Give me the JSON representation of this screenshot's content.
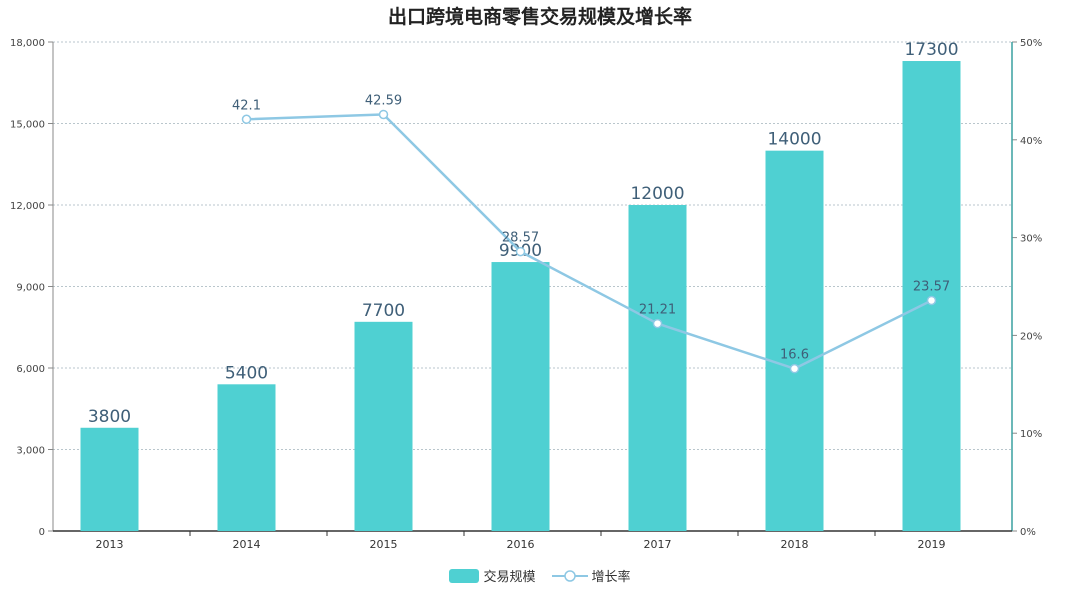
{
  "chart_data": {
    "type": "bar",
    "title": "出口跨境电商零售交易规模及增长率",
    "categories": [
      "2013",
      "2014",
      "2015",
      "2016",
      "2017",
      "2018",
      "2019"
    ],
    "series": [
      {
        "name": "交易规模",
        "type": "bar",
        "axis": "left",
        "values": [
          3800,
          5400,
          7700,
          9900,
          12000,
          14000,
          17300
        ]
      },
      {
        "name": "增长率",
        "type": "line",
        "axis": "right",
        "values": [
          null,
          42.1,
          42.59,
          28.57,
          21.21,
          16.6,
          23.57
        ]
      }
    ],
    "y_left": {
      "min": 0,
      "max": 18000,
      "ticks": [
        "0",
        "3,000",
        "6,000",
        "9,000",
        "12,000",
        "15,000",
        "18,000"
      ]
    },
    "y_right": {
      "min": 0,
      "max": 50,
      "ticks": [
        "0%",
        "10%",
        "20%",
        "30%",
        "40%",
        "50%"
      ]
    },
    "grid": true,
    "legend_position": "bottom",
    "colors": {
      "bar": "#4fd0d2",
      "line": "#8ec8e4",
      "label": "#3f5f78"
    }
  }
}
